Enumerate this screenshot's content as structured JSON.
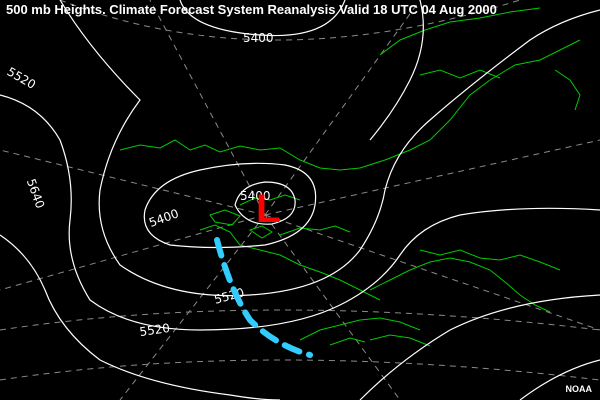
{
  "title": "500 mb Heights. Climate Forecast System Reanalysis Valid 18 UTC 04 Aug 2000",
  "credit": "NOAA",
  "low_marker": "L",
  "contour_labels": {
    "north": "5400",
    "west": "5520",
    "southwest": "5640",
    "center_left": "5400",
    "center": "5400",
    "south": "5520",
    "bottom": "5520"
  },
  "colors": {
    "background": "#000000",
    "contours": "#ffffff",
    "graticule": "#8a8a8a",
    "coastline": "#00cc00",
    "low_marker": "#ff0000",
    "trough": "#33ccff"
  }
}
